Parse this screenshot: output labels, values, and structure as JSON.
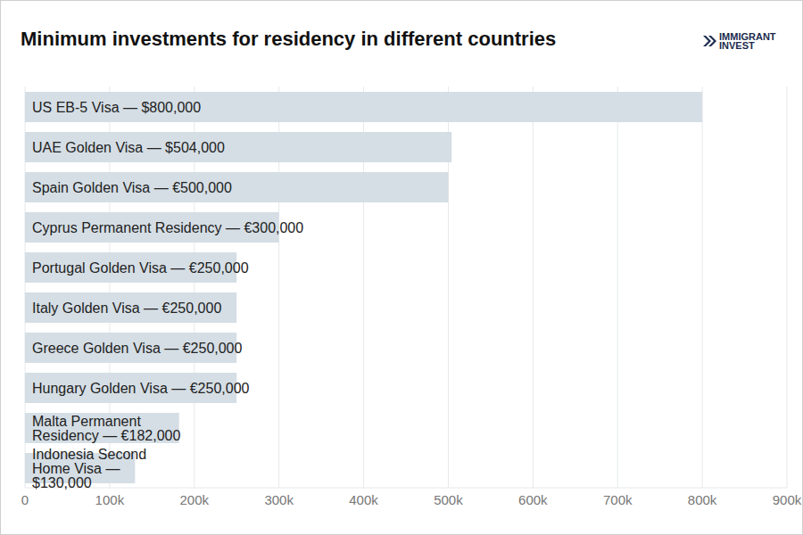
{
  "chart_data": {
    "type": "bar",
    "title": "Minimum investments for residency in different countries",
    "annotations": [
      "IMMIGRANT",
      "INVEST"
    ],
    "orientation": "horizontal",
    "categories": [
      "US EB-5 Visa — $800,000",
      "UAE Golden Visa — $504,000",
      "Spain Golden Visa — €500,000",
      "Cyprus Permanent Residency — €300,000",
      "Portugal Golden Visa — €250,000",
      "Italy Golden Visa — €250,000",
      "Greece Golden Visa — €250,000",
      "Hungary Golden Visa — €250,000",
      "Malta Permanent Residency — €182,000",
      "Indonesia Second Home Visa — $130,000"
    ],
    "values": [
      800000,
      504000,
      500000,
      300000,
      250000,
      250000,
      250000,
      250000,
      182000,
      130000
    ],
    "color": "#d5dee5",
    "xlim": [
      0,
      900000
    ],
    "xticks": [
      0,
      {
        "value": 100000,
        "label": "100k"
      },
      {
        "value": 200000,
        "label": "200k"
      },
      {
        "value": 300000,
        "label": "300k"
      },
      {
        "value": 400000,
        "label": "400k"
      },
      {
        "value": 500000,
        "label": "500k"
      },
      {
        "value": 600000,
        "label": "600k"
      },
      {
        "value": 700000,
        "label": "700k"
      },
      {
        "value": 800000,
        "label": "800k"
      },
      {
        "value": 900000,
        "label": "900k"
      }
    ],
    "grid": true,
    "tick_labels": "x"
  }
}
